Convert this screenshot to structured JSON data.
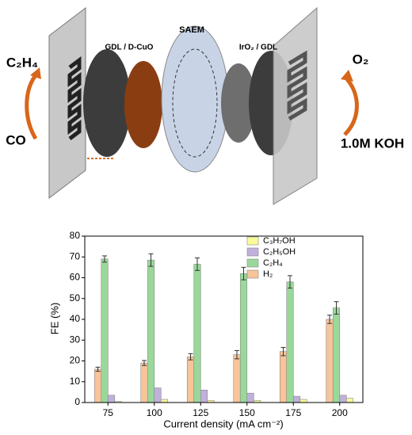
{
  "diagram": {
    "labels": {
      "product_left": "C₂H₄",
      "feed_left": "CO",
      "cathode": "GDL / D-CuO",
      "membrane": "SAEM",
      "anode": "IrO₂ / GDL",
      "product_right": "O₂",
      "electrolyte": "1.0M KOH"
    }
  },
  "chart_data": {
    "type": "bar",
    "x_label": "Current density (mA cm⁻²)",
    "y_label": "FE (%)",
    "categories": [
      "75",
      "100",
      "125",
      "150",
      "175",
      "200"
    ],
    "series": [
      {
        "name": "H₂",
        "color": "#f8c49a",
        "values": [
          16,
          19,
          22,
          23,
          24.5,
          40
        ],
        "errors": [
          1,
          1.2,
          1.5,
          2,
          2,
          2
        ]
      },
      {
        "name": "C₂H₄",
        "color": "#9ad89a",
        "values": [
          69,
          68.5,
          66.5,
          62,
          58,
          45.5
        ],
        "errors": [
          1.5,
          3,
          3,
          3,
          3,
          3
        ]
      },
      {
        "name": "C₂H₅OH",
        "color": "#c0b0dc",
        "values": [
          3.5,
          7,
          6,
          4.5,
          3,
          3.5
        ]
      },
      {
        "name": "C₃H₇OH",
        "color": "#fafa9a",
        "values": [
          0.5,
          1.5,
          1,
          1,
          1.5,
          2
        ]
      }
    ],
    "ylim": [
      0,
      80
    ],
    "yticks": [
      0,
      10,
      20,
      30,
      40,
      50,
      60,
      70,
      80
    ],
    "legend": "top-right"
  }
}
